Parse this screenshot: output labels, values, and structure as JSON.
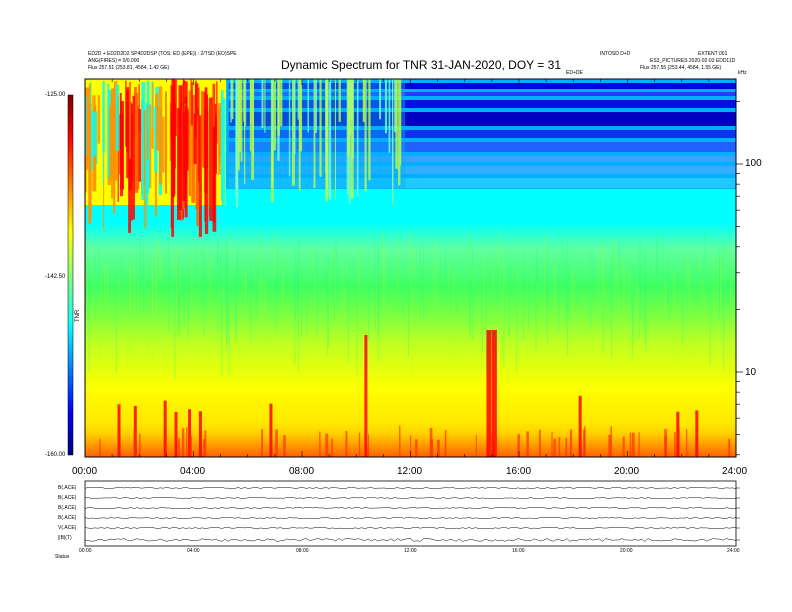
{
  "chart_data": {
    "type": "heatmap",
    "title": "Dynamic Spectrum for TNR 31-JAN-2020, DOY = 31",
    "x_ticks": [
      "00:00",
      "04:00",
      "08:00",
      "12:00",
      "16:00",
      "20:00",
      "24:00"
    ],
    "x_range_hours": [
      0,
      24
    ],
    "y_scale": "log",
    "y_ticks": [
      "100",
      "10"
    ],
    "y_label_right": "kHz",
    "colorbar": {
      "ticks": [
        "-125.00",
        "-142.50",
        "-160.00"
      ],
      "range": [
        -160,
        -125
      ],
      "label": "TNR",
      "colors": [
        "#000080",
        "#0000ff",
        "#00ffff",
        "#ffff00",
        "#ff0000",
        "#800000"
      ]
    },
    "bursts_hours": [
      1.2,
      1.8,
      2.9,
      3.3,
      3.8,
      4.2,
      6.8,
      10.3,
      14.8,
      15.0,
      18.2,
      21.8,
      22.5
    ],
    "panel_rows": [
      "B(.ACE)",
      "B(.ACE)",
      "B(.ACE)",
      "B(.ACE)",
      "V(.ACE)",
      "||B|(T)"
    ]
  },
  "header": {
    "top_left_1": "ED2D + ED2D2D2 SP4D2DSP (TOS: ED (EPE)) : 2/TSD (EO)SPE",
    "top_left_2": "ANG(FIRES) = 0/0.000",
    "top_left_3": "Flux 257.51 (253.81, 4584, 1.42 GE)",
    "top_right_1": "INTOSD D+D",
    "top_right_2": "EXTENT 001",
    "top_right_3": "ES3_PICTURES 2020-02-03 EDD11D",
    "top_right_4": "Flux 257.55 (253.44, 4584, 1.55 GE)",
    "top_right_5": "ED+DE",
    "top_right_6": "kHz",
    "bottom_left": "Status"
  }
}
